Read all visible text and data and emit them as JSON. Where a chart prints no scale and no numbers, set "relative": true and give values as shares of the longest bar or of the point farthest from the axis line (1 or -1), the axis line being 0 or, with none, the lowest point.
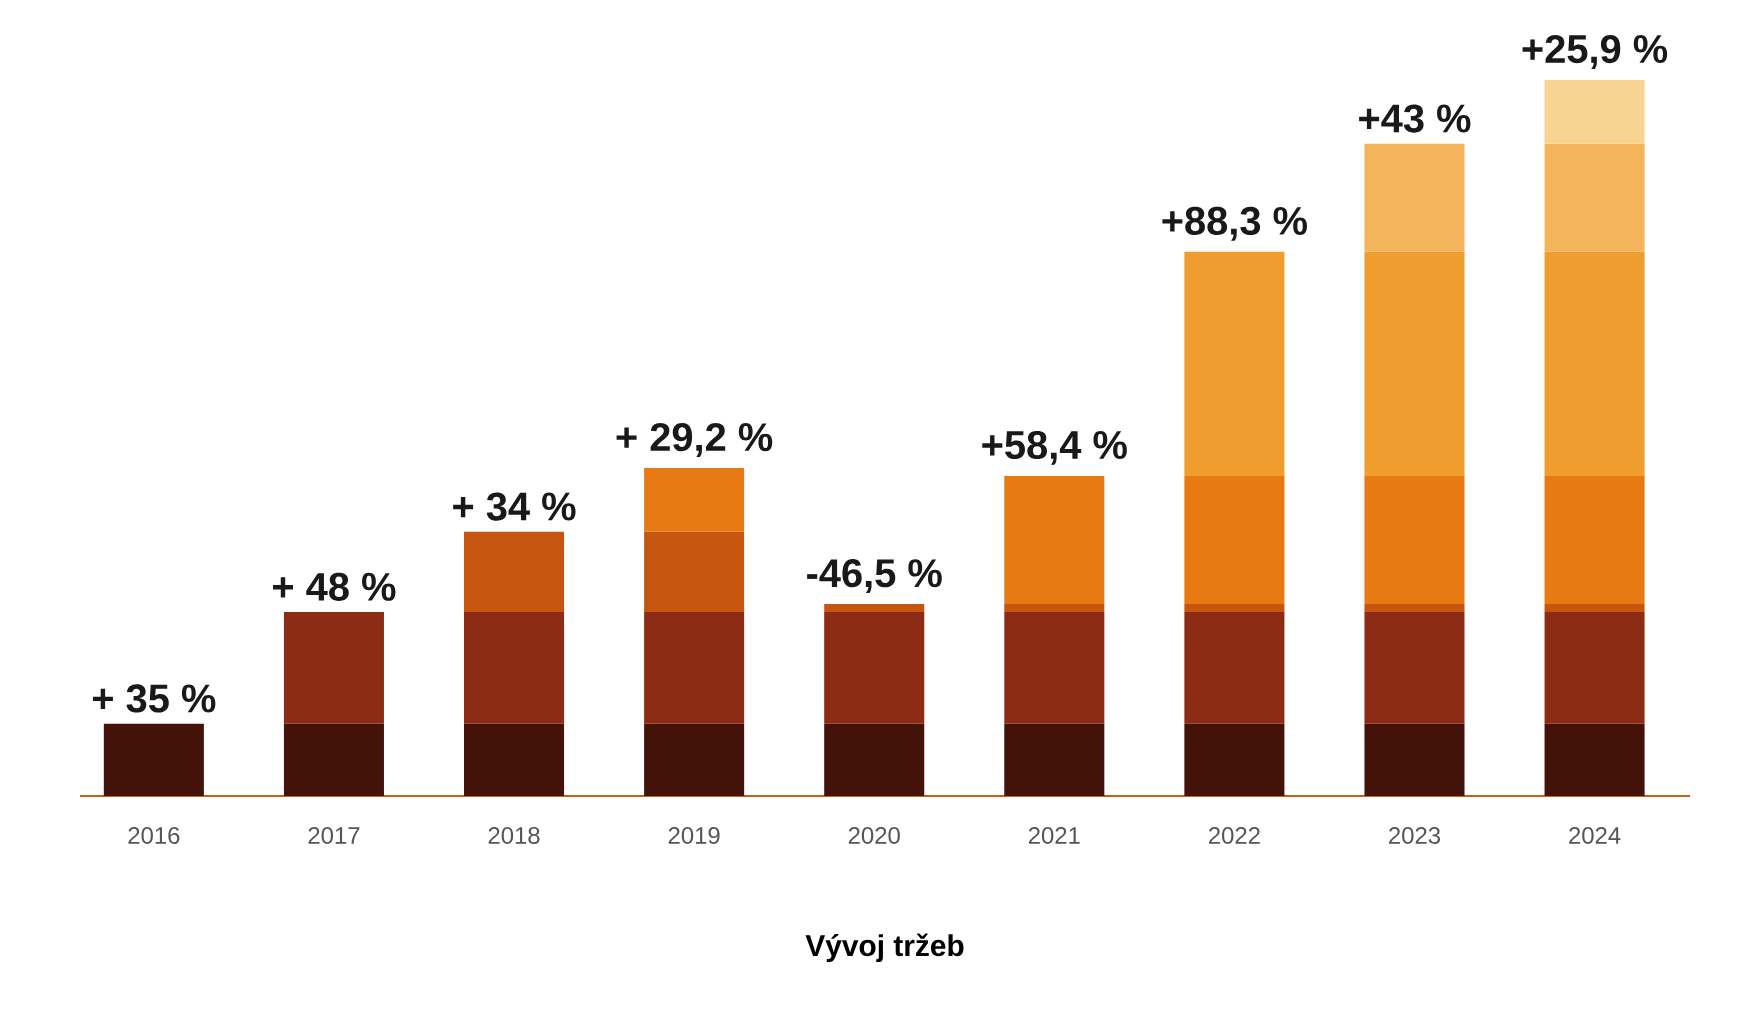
{
  "chart_data": {
    "type": "bar",
    "stacked": true,
    "relative": true,
    "xlabel": "Vývoj tržeb",
    "categories": [
      "2016",
      "2017",
      "2018",
      "2019",
      "2020",
      "2021",
      "2022",
      "2023",
      "2024"
    ],
    "series": [
      {
        "color": "#431208",
        "values": [
          0.101,
          0.101,
          0.101,
          0.101,
          0.101,
          0.101,
          0.101,
          0.101,
          0.101
        ]
      },
      {
        "color": "#8c2c14",
        "values": [
          null,
          0.156,
          0.156,
          0.156,
          0.156,
          0.156,
          0.156,
          0.156,
          0.156
        ]
      },
      {
        "color": "#c6560f",
        "values": [
          null,
          null,
          0.112,
          0.112,
          0.011,
          0.011,
          0.011,
          0.011,
          0.011
        ]
      },
      {
        "color": "#e87a14",
        "values": [
          null,
          null,
          null,
          0.089,
          null,
          0.179,
          0.179,
          0.179,
          0.179
        ]
      },
      {
        "color": "#f09d30",
        "values": [
          null,
          null,
          null,
          null,
          null,
          null,
          0.313,
          0.313,
          0.313
        ]
      },
      {
        "color": "#f4b55a",
        "values": [
          null,
          null,
          null,
          null,
          null,
          null,
          null,
          0.151,
          0.151
        ]
      },
      {
        "color": "#f7d491",
        "values": [
          null,
          null,
          null,
          null,
          null,
          null,
          null,
          null,
          0.089
        ]
      }
    ],
    "annotations": [
      "+ 35 %",
      "+ 48 %",
      "+ 34 %",
      "+ 29,2 %",
      "-46,5 %",
      "+58,4 %",
      "+88,3 %",
      "+43 %",
      "+25,9 %"
    ]
  }
}
